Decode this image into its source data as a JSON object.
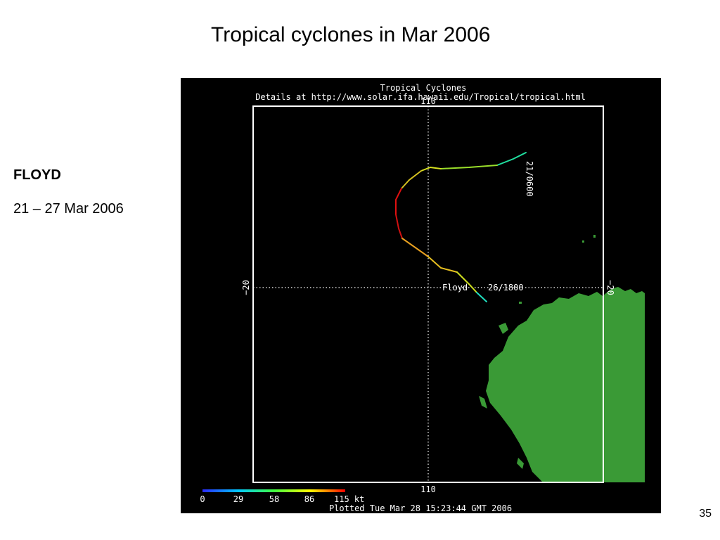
{
  "slide": {
    "title": "Tropical cyclones in Mar 2006",
    "storm_name": "FLOYD",
    "date_range": "21 – 27 Mar 2006",
    "page_number": "35"
  },
  "map": {
    "header_line1": "Tropical Cyclones",
    "header_line2": "Details at http://www.solar.ifa.hawaii.edu/Tropical/tropical.html",
    "lon_label_top": "110",
    "lon_label_bottom": "110",
    "lat_label_left": "−20",
    "lat_label_right": "−20",
    "track_start_label": "21/0600",
    "track_end_label": "Floyd    26/1800",
    "footer": "Plotted Tue Mar 28 15:23:44 GMT 2006",
    "colorbar_ticks": [
      "0",
      "29",
      "58",
      "86",
      "115 kt"
    ],
    "colors": {
      "background": "#000000",
      "frame": "#ffffff",
      "land": "#3a9a36",
      "grid": "#ffffff"
    }
  }
}
